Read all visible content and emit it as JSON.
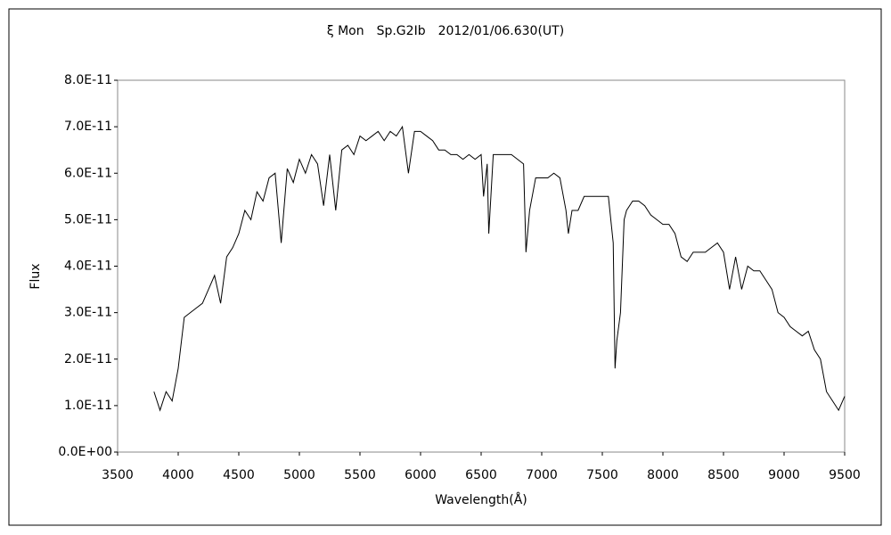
{
  "chart_data": {
    "type": "line",
    "title": "ξ Mon　Sp.G2Ib　2012/01/06.630(UT)",
    "x_label": "Wavelength(Å)",
    "y_label": "Flux",
    "x": [
      3800,
      3850,
      3900,
      3950,
      4000,
      4050,
      4100,
      4150,
      4200,
      4250,
      4300,
      4350,
      4400,
      4450,
      4500,
      4550,
      4600,
      4650,
      4700,
      4750,
      4800,
      4850,
      4900,
      4950,
      5000,
      5050,
      5100,
      5150,
      5200,
      5250,
      5300,
      5350,
      5400,
      5450,
      5500,
      5550,
      5600,
      5650,
      5700,
      5750,
      5800,
      5850,
      5900,
      5950,
      6000,
      6050,
      6100,
      6150,
      6200,
      6250,
      6300,
      6350,
      6400,
      6450,
      6500,
      6520,
      6550,
      6563,
      6600,
      6650,
      6700,
      6750,
      6800,
      6850,
      6870,
      6900,
      6950,
      7000,
      7050,
      7100,
      7150,
      7200,
      7220,
      7250,
      7300,
      7350,
      7400,
      7450,
      7500,
      7550,
      7590,
      7605,
      7620,
      7650,
      7680,
      7700,
      7750,
      7800,
      7850,
      7900,
      7950,
      8000,
      8050,
      8100,
      8150,
      8200,
      8250,
      8300,
      8350,
      8400,
      8450,
      8500,
      8550,
      8600,
      8650,
      8700,
      8750,
      8800,
      8850,
      8900,
      8950,
      9000,
      9050,
      9100,
      9150,
      9200,
      9250,
      9300,
      9350,
      9400,
      9450,
      9500
    ],
    "series": [
      {
        "name": "Flux",
        "color": "#000000",
        "values": [
          1.3e-11,
          9e-12,
          1.3e-11,
          1.1e-11,
          1.8e-11,
          2.9e-11,
          3e-11,
          3.1e-11,
          3.2e-11,
          3.5e-11,
          3.8e-11,
          3.2e-11,
          4.2e-11,
          4.4e-11,
          4.7e-11,
          5.2e-11,
          5e-11,
          5.6e-11,
          5.4e-11,
          5.9e-11,
          6e-11,
          4.5e-11,
          6.1e-11,
          5.8e-11,
          6.3e-11,
          6e-11,
          6.4e-11,
          6.2e-11,
          5.3e-11,
          6.4e-11,
          5.2e-11,
          6.5e-11,
          6.6e-11,
          6.4e-11,
          6.8e-11,
          6.7e-11,
          6.8e-11,
          6.9e-11,
          6.7e-11,
          6.9e-11,
          6.8e-11,
          7e-11,
          6e-11,
          6.9e-11,
          6.9e-11,
          6.8e-11,
          6.7e-11,
          6.5e-11,
          6.5e-11,
          6.4e-11,
          6.4e-11,
          6.3e-11,
          6.4e-11,
          6.3e-11,
          6.4e-11,
          5.5e-11,
          6.2e-11,
          4.7e-11,
          6.4e-11,
          6.4e-11,
          6.4e-11,
          6.4e-11,
          6.3e-11,
          6.2e-11,
          4.3e-11,
          5.2e-11,
          5.9e-11,
          5.9e-11,
          5.9e-11,
          6e-11,
          5.9e-11,
          5.2e-11,
          4.7e-11,
          5.2e-11,
          5.2e-11,
          5.5e-11,
          5.5e-11,
          5.5e-11,
          5.5e-11,
          5.5e-11,
          4.5e-11,
          1.8e-11,
          2.4e-11,
          3e-11,
          5e-11,
          5.2e-11,
          5.4e-11,
          5.4e-11,
          5.3e-11,
          5.1e-11,
          5e-11,
          4.9e-11,
          4.9e-11,
          4.7e-11,
          4.2e-11,
          4.1e-11,
          4.3e-11,
          4.3e-11,
          4.3e-11,
          4.4e-11,
          4.5e-11,
          4.3e-11,
          3.5e-11,
          4.2e-11,
          3.5e-11,
          4e-11,
          3.9e-11,
          3.9e-11,
          3.7e-11,
          3.5e-11,
          3e-11,
          2.9e-11,
          2.7e-11,
          2.6e-11,
          2.5e-11,
          2.6e-11,
          2.2e-11,
          2e-11,
          1.3e-11,
          1.1e-11,
          9e-12,
          1.2e-11
        ]
      }
    ],
    "xlim": [
      3500,
      9500
    ],
    "xticks": [
      3500,
      4000,
      4500,
      5000,
      5500,
      6000,
      6500,
      7000,
      7500,
      8000,
      8500,
      9000,
      9500
    ],
    "ylim": [
      0,
      8e-11
    ],
    "yticks": [
      {
        "value": 0,
        "label": "0.0E+00"
      },
      {
        "value": 1e-11,
        "label": "1.0E-11"
      },
      {
        "value": 2e-11,
        "label": "2.0E-11"
      },
      {
        "value": 3e-11,
        "label": "3.0E-11"
      },
      {
        "value": 4e-11,
        "label": "4.0E-11"
      },
      {
        "value": 5e-11,
        "label": "5.0E-11"
      },
      {
        "value": 6e-11,
        "label": "6.0E-11"
      },
      {
        "value": 7e-11,
        "label": "7.0E-11"
      },
      {
        "value": 8e-11,
        "label": "8.0E-11"
      }
    ],
    "grid": false
  }
}
